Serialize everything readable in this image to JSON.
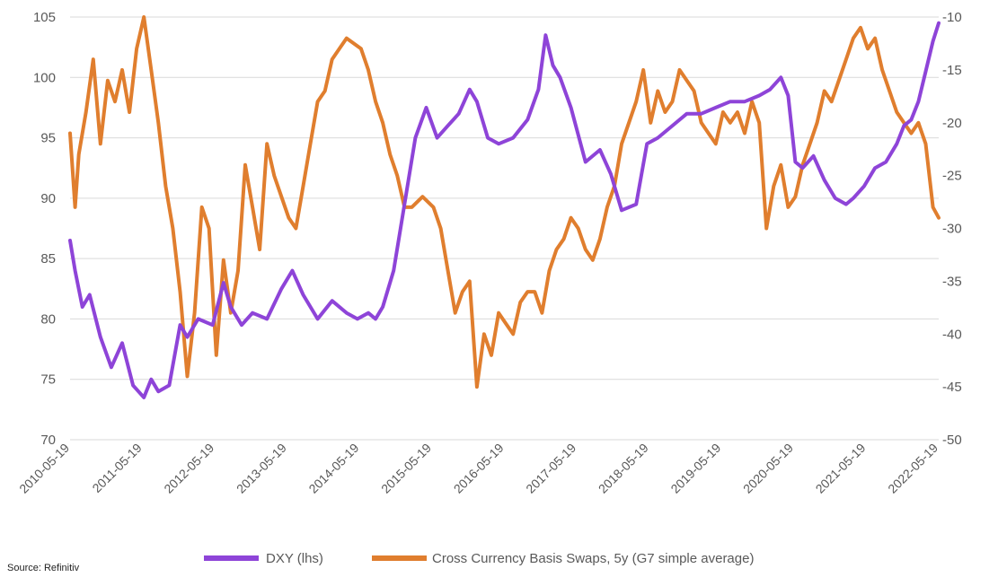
{
  "chart_data": {
    "type": "line",
    "title": "",
    "source": "Source: Refinitiv",
    "left_axis": {
      "ticks": [
        "70",
        "75",
        "80",
        "85",
        "90",
        "95",
        "100",
        "105"
      ],
      "min": 70,
      "max": 105
    },
    "right_axis": {
      "ticks": [
        "-50",
        "-45",
        "-40",
        "-35",
        "-30",
        "-25",
        "-20",
        "-15",
        "-10"
      ],
      "min": -50,
      "max": -10
    },
    "x_labels": [
      "2010-05-19",
      "2011-05-19",
      "2012-05-19",
      "2013-05-19",
      "2014-05-19",
      "2015-05-19",
      "2016-05-19",
      "2017-05-19",
      "2018-05-19",
      "2019-05-19",
      "2020-05-19",
      "2021-05-19",
      "2022-05-19"
    ],
    "grid": true,
    "legend_position": "bottom",
    "series": [
      {
        "name": "DXY (lhs)",
        "axis": "left",
        "color": "#8E44D8",
        "x": [
          2010.38,
          2010.45,
          2010.55,
          2010.65,
          2010.8,
          2010.95,
          2011.1,
          2011.25,
          2011.4,
          2011.5,
          2011.6,
          2011.75,
          2011.9,
          2012.0,
          2012.15,
          2012.35,
          2012.5,
          2012.6,
          2012.75,
          2012.9,
          2013.1,
          2013.3,
          2013.45,
          2013.6,
          2013.8,
          2014.0,
          2014.2,
          2014.35,
          2014.5,
          2014.6,
          2014.7,
          2014.85,
          2015.0,
          2015.15,
          2015.3,
          2015.45,
          2015.6,
          2015.75,
          2015.9,
          2016.0,
          2016.15,
          2016.3,
          2016.5,
          2016.7,
          2016.85,
          2016.95,
          2017.05,
          2017.15,
          2017.3,
          2017.5,
          2017.7,
          2017.85,
          2018.0,
          2018.2,
          2018.35,
          2018.5,
          2018.7,
          2018.9,
          2019.1,
          2019.3,
          2019.5,
          2019.7,
          2019.9,
          2020.05,
          2020.2,
          2020.3,
          2020.4,
          2020.5,
          2020.65,
          2020.8,
          2020.95,
          2021.1,
          2021.2,
          2021.35,
          2021.5,
          2021.65,
          2021.8,
          2021.9,
          2022.0,
          2022.1,
          2022.2,
          2022.3,
          2022.38
        ],
        "y": [
          86.5,
          84.0,
          81.0,
          82.0,
          78.5,
          76.0,
          78.0,
          74.5,
          73.5,
          75.0,
          74.0,
          74.5,
          79.5,
          78.5,
          80.0,
          79.5,
          83.0,
          81.0,
          79.5,
          80.5,
          80.0,
          82.5,
          84.0,
          82.0,
          80.0,
          81.5,
          80.5,
          80.0,
          80.5,
          80.0,
          81.0,
          84.0,
          89.5,
          95.0,
          97.5,
          95.0,
          96.0,
          97.0,
          99.0,
          98.0,
          95.0,
          94.5,
          95.0,
          96.5,
          99.0,
          103.5,
          101.0,
          100.0,
          97.5,
          93.0,
          94.0,
          92.0,
          89.0,
          89.5,
          94.5,
          95.0,
          96.0,
          97.0,
          97.0,
          97.5,
          98.0,
          98.0,
          98.5,
          99.0,
          100.0,
          98.5,
          93.0,
          92.5,
          93.5,
          91.5,
          90.0,
          89.5,
          90.0,
          91.0,
          92.5,
          93.0,
          94.5,
          96.0,
          96.5,
          98.0,
          100.5,
          103.0,
          104.5
        ]
      },
      {
        "name": "Cross Currency Basis Swaps, 5y (G7 simple average)",
        "axis": "right",
        "color": "#E07E2E",
        "x": [
          2010.38,
          2010.45,
          2010.5,
          2010.6,
          2010.7,
          2010.8,
          2010.9,
          2011.0,
          2011.1,
          2011.2,
          2011.3,
          2011.4,
          2011.5,
          2011.6,
          2011.7,
          2011.8,
          2011.9,
          2012.0,
          2012.1,
          2012.2,
          2012.3,
          2012.4,
          2012.5,
          2012.6,
          2012.7,
          2012.8,
          2012.9,
          2013.0,
          2013.1,
          2013.2,
          2013.3,
          2013.4,
          2013.5,
          2013.6,
          2013.7,
          2013.8,
          2013.9,
          2014.0,
          2014.2,
          2014.4,
          2014.5,
          2014.6,
          2014.7,
          2014.8,
          2014.9,
          2015.0,
          2015.1,
          2015.25,
          2015.4,
          2015.5,
          2015.6,
          2015.7,
          2015.8,
          2015.9,
          2016.0,
          2016.1,
          2016.2,
          2016.3,
          2016.4,
          2016.5,
          2016.6,
          2016.7,
          2016.8,
          2016.9,
          2017.0,
          2017.1,
          2017.2,
          2017.3,
          2017.4,
          2017.5,
          2017.6,
          2017.7,
          2017.8,
          2017.9,
          2018.0,
          2018.1,
          2018.2,
          2018.3,
          2018.4,
          2018.5,
          2018.6,
          2018.7,
          2018.8,
          2018.9,
          2019.0,
          2019.1,
          2019.2,
          2019.3,
          2019.4,
          2019.5,
          2019.6,
          2019.7,
          2019.8,
          2019.9,
          2020.0,
          2020.1,
          2020.2,
          2020.3,
          2020.4,
          2020.5,
          2020.6,
          2020.7,
          2020.8,
          2020.9,
          2021.0,
          2021.1,
          2021.2,
          2021.3,
          2021.4,
          2021.5,
          2021.6,
          2021.7,
          2021.8,
          2021.9,
          2022.0,
          2022.1,
          2022.2,
          2022.3,
          2022.38
        ],
        "y": [
          -21,
          -28,
          -23,
          -19,
          -14,
          -22,
          -16,
          -18,
          -15,
          -19,
          -13,
          -10,
          -15,
          -20,
          -26,
          -30,
          -36,
          -44,
          -38,
          -28,
          -30,
          -42,
          -33,
          -38,
          -34,
          -24,
          -28,
          -32,
          -22,
          -25,
          -27,
          -29,
          -30,
          -26,
          -22,
          -18,
          -17,
          -14,
          -12,
          -13,
          -15,
          -18,
          -20,
          -23,
          -25,
          -28,
          -28,
          -27,
          -28,
          -30,
          -34,
          -38,
          -36,
          -35,
          -45,
          -40,
          -42,
          -38,
          -39,
          -40,
          -37,
          -36,
          -36,
          -38,
          -34,
          -32,
          -31,
          -29,
          -30,
          -32,
          -33,
          -31,
          -28,
          -26,
          -22,
          -20,
          -18,
          -15,
          -20,
          -17,
          -19,
          -18,
          -15,
          -16,
          -17,
          -20,
          -21,
          -22,
          -19,
          -20,
          -19,
          -21,
          -18,
          -20,
          -30,
          -26,
          -24,
          -28,
          -27,
          -24,
          -22,
          -20,
          -17,
          -18,
          -16,
          -14,
          -12,
          -11,
          -13,
          -12,
          -15,
          -17,
          -19,
          -20,
          -21,
          -20,
          -22,
          -28,
          -29
        ]
      }
    ]
  }
}
